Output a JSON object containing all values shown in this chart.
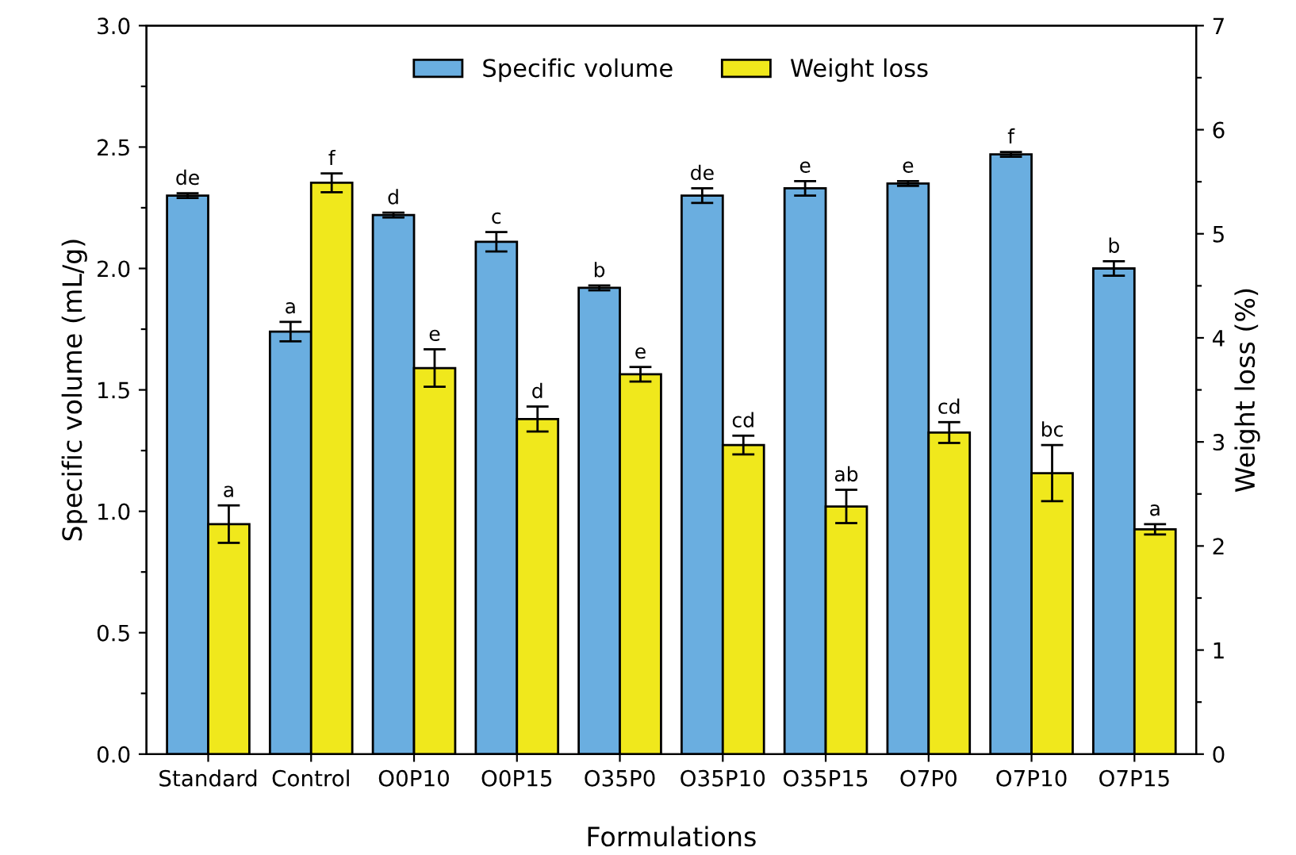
{
  "chart_data": {
    "type": "bar",
    "xlabel": "Formulations",
    "ylabel": "Specific volume (mL/g)",
    "y2label": "Weight loss (%)",
    "categories": [
      "Standard",
      "Control",
      "O0P10",
      "O0P15",
      "O35P0",
      "O35P10",
      "O35P15",
      "O7P0",
      "O7P10",
      "O7P15"
    ],
    "series": [
      {
        "name": "Specific volume",
        "color": "#6aaee0",
        "values": [
          2.3,
          1.74,
          2.22,
          2.11,
          1.92,
          2.3,
          2.33,
          2.35,
          2.47,
          2.0
        ],
        "errors": [
          0.01,
          0.04,
          0.01,
          0.04,
          0.01,
          0.03,
          0.03,
          0.01,
          0.01,
          0.03
        ],
        "value_labels": [
          "de",
          "a",
          "d",
          "c",
          "b",
          "de",
          "e",
          "e",
          "f",
          "b"
        ]
      },
      {
        "name": "Weight loss",
        "color": "#f0e81c",
        "axis": "y2",
        "values": [
          2.21,
          5.49,
          3.71,
          3.22,
          3.65,
          2.97,
          2.38,
          3.09,
          2.7,
          2.16
        ],
        "errors": [
          0.18,
          0.09,
          0.18,
          0.12,
          0.07,
          0.09,
          0.16,
          0.1,
          0.27,
          0.05
        ],
        "value_labels": [
          "a",
          "f",
          "e",
          "d",
          "e",
          "cd",
          "ab",
          "cd",
          "bc",
          "a"
        ]
      }
    ],
    "ylim": [
      0,
      3
    ],
    "yticks": [
      {
        "value": 0,
        "label": "0.0"
      },
      {
        "value": 0.25,
        "label": null
      },
      {
        "value": 0.5,
        "label": "0.5"
      },
      {
        "value": 0.75,
        "label": null
      },
      {
        "value": 1,
        "label": "1.0"
      },
      {
        "value": 1.25,
        "label": null
      },
      {
        "value": 1.5,
        "label": "1.5"
      },
      {
        "value": 1.75,
        "label": null
      },
      {
        "value": 2,
        "label": "2.0"
      },
      {
        "value": 2.25,
        "label": null
      },
      {
        "value": 2.5,
        "label": "2.5"
      },
      {
        "value": 2.75,
        "label": null
      },
      {
        "value": 3,
        "label": "3.0"
      }
    ],
    "y2lim": [
      0,
      7
    ],
    "y2ticks": [
      0,
      {
        "value": 0.5,
        "label": null
      },
      1,
      {
        "value": 1.5,
        "label": null
      },
      2,
      {
        "value": 2.5,
        "label": null
      },
      3,
      {
        "value": 3.5,
        "label": null
      },
      4,
      {
        "value": 4.5,
        "label": null
      },
      5,
      {
        "value": 5.5,
        "label": null
      },
      6,
      {
        "value": 6.5,
        "label": null
      },
      7
    ],
    "legend": "top",
    "grid": false
  }
}
